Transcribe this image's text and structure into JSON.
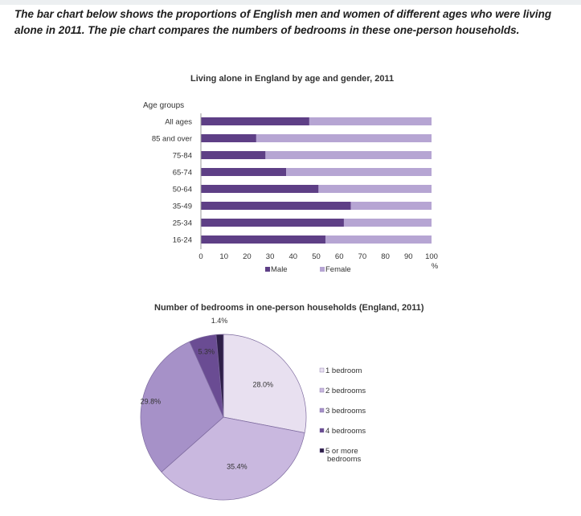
{
  "prompt_text": "The bar chart below shows the proportions of English men and women of different ages who were living alone in 2011. The pie chart compares the numbers of bedrooms in these one-person households.",
  "colors": {
    "male": "#5e3f86",
    "female": "#b6a5d3",
    "pie": [
      "#e8e0f0",
      "#c9b8df",
      "#a691c8",
      "#6a4c93",
      "#2e1f48"
    ],
    "pie_border": "#7d6a9e"
  },
  "chart_data": [
    {
      "type": "bar",
      "orientation": "horizontal-stacked",
      "title": "Living alone in England by age and gender, 2011",
      "category_axis_title": "Age groups",
      "categories": [
        "All ages",
        "85 and over",
        "75-84",
        "65-74",
        "50-64",
        "35-49",
        "25-34",
        "16-24"
      ],
      "series": [
        {
          "name": "Male",
          "values": [
            47,
            24,
            28,
            37,
            51,
            65,
            62,
            54
          ]
        },
        {
          "name": "Female",
          "values": [
            53,
            76,
            72,
            63,
            49,
            35,
            38,
            46
          ]
        }
      ],
      "xlim": [
        0,
        100
      ],
      "xticks": [
        0,
        10,
        20,
        30,
        40,
        50,
        60,
        70,
        80,
        90,
        100
      ],
      "xunit": "%",
      "legend_position": "bottom",
      "grid": false
    },
    {
      "type": "pie",
      "title": "Number of bedrooms in one-person households (England, 2011)",
      "categories": [
        "1 bedroom",
        "2 bedrooms",
        "3 bedrooms",
        "4 bedrooms",
        "5 or more bedrooms"
      ],
      "values": [
        28.0,
        35.4,
        29.8,
        5.3,
        1.4
      ],
      "labels": [
        "28.0%",
        "35.4%",
        "29.8%",
        "5.3%",
        "1.4%"
      ],
      "legend_position": "right"
    }
  ]
}
